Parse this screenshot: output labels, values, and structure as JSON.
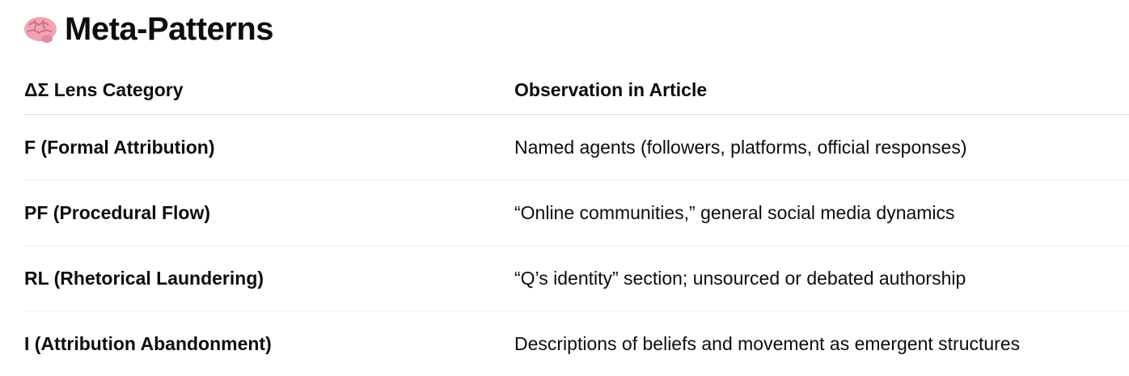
{
  "heading": {
    "icon": "brain-emoji",
    "text": "Meta-Patterns"
  },
  "table": {
    "headers": [
      "ΔΣ Lens Category",
      "Observation in Article"
    ],
    "rows": [
      [
        "F (Formal Attribution)",
        "Named agents (followers, platforms, official responses)"
      ],
      [
        "PF (Procedural Flow)",
        "“Online communities,” general social media dynamics"
      ],
      [
        "RL (Rhetorical Laundering)",
        "“Q’s identity” section; unsourced or debated authorship"
      ],
      [
        "I (Attribution Abandonment)",
        "Descriptions of beliefs and movement as emergent structures"
      ]
    ]
  }
}
